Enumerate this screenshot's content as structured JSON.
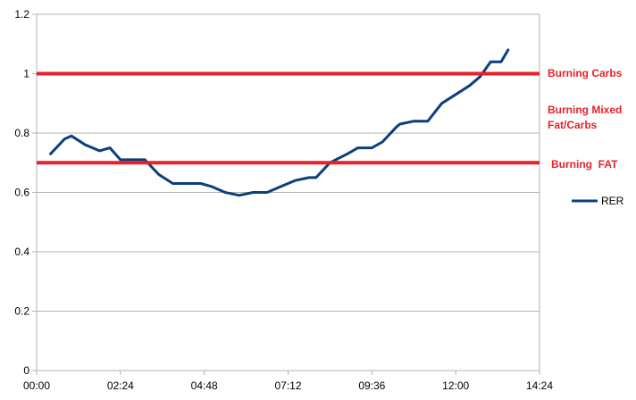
{
  "chart_data": {
    "type": "line",
    "title": "",
    "xlabel": "",
    "ylabel": "",
    "x_tick_labels": [
      "00:00",
      "02:24",
      "04:48",
      "07:12",
      "09:36",
      "12:00",
      "14:24"
    ],
    "x_ticks_minutes": [
      0,
      144,
      288,
      432,
      576,
      720,
      864
    ],
    "xlim_minutes": [
      0,
      864
    ],
    "ylim": [
      0,
      1.2
    ],
    "y_ticks": [
      0,
      0.2,
      0.4,
      0.6,
      0.8,
      1,
      1.2
    ],
    "y_tick_labels": [
      "0",
      "0.2",
      "0.4",
      "0.6",
      "0.8",
      "1",
      "1.2"
    ],
    "grid": true,
    "legend_position": "right",
    "series": [
      {
        "name": "RER",
        "color": "#0b3f7d",
        "x_minutes": [
          24,
          48,
          60,
          84,
          108,
          126,
          144,
          162,
          186,
          210,
          234,
          258,
          282,
          300,
          324,
          348,
          372,
          396,
          420,
          444,
          468,
          480,
          504,
          534,
          552,
          576,
          594,
          618,
          624,
          648,
          672,
          696,
          720,
          744,
          762,
          780,
          798,
          810
        ],
        "values": [
          0.73,
          0.78,
          0.79,
          0.76,
          0.74,
          0.75,
          0.71,
          0.71,
          0.71,
          0.66,
          0.63,
          0.63,
          0.63,
          0.62,
          0.6,
          0.59,
          0.6,
          0.6,
          0.62,
          0.64,
          0.65,
          0.65,
          0.7,
          0.73,
          0.75,
          0.75,
          0.77,
          0.82,
          0.83,
          0.84,
          0.84,
          0.9,
          0.93,
          0.96,
          0.99,
          1.04,
          1.04,
          1.08
        ]
      }
    ],
    "reference_lines": [
      {
        "value": 1,
        "label": "Burning Carbs",
        "color": "#e8202a"
      },
      {
        "value": 0.7,
        "label": "Burning  FAT",
        "color": "#e8202a"
      }
    ],
    "annotations": [
      {
        "text": "Burning Mixed",
        "color": "#e8202a"
      },
      {
        "text": "Fat/Carbs",
        "color": "#e8202a"
      }
    ]
  }
}
